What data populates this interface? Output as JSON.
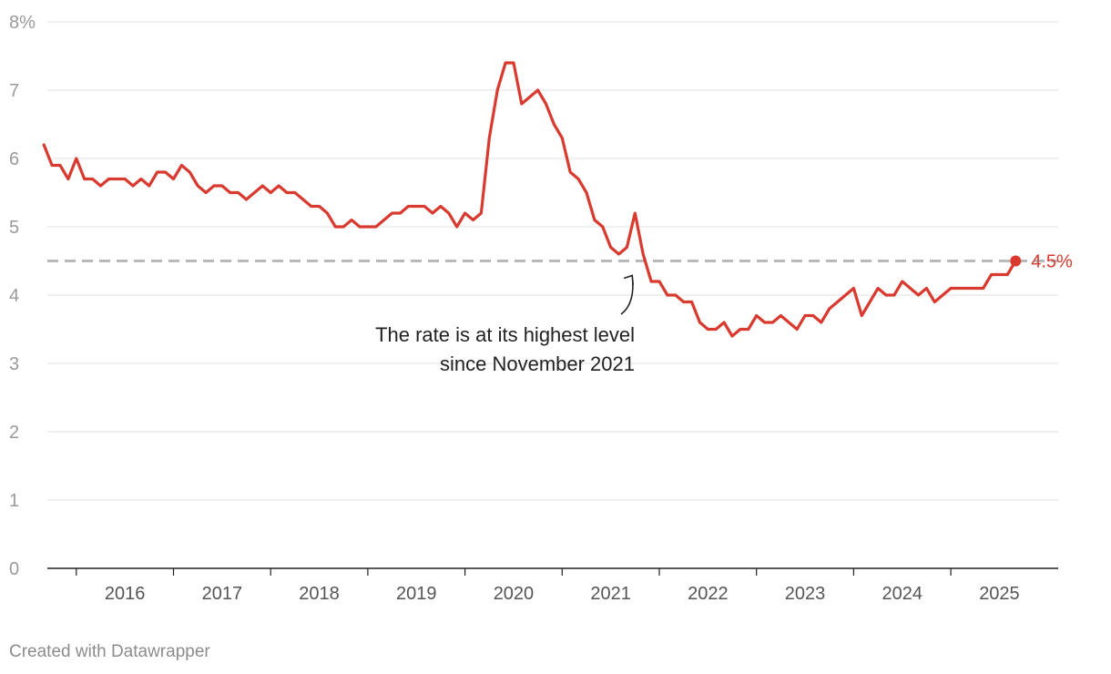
{
  "chart_data": {
    "type": "line",
    "title": "",
    "xlabel": "",
    "ylabel": "",
    "ylim": [
      0,
      8
    ],
    "y_ticks": [
      "0",
      "1",
      "2",
      "3",
      "4",
      "5",
      "6",
      "7",
      "8%"
    ],
    "x_tick_labels": [
      "2016",
      "2017",
      "2018",
      "2019",
      "2020",
      "2021",
      "2022",
      "2023",
      "2024",
      "2025"
    ],
    "x_tick_years": [
      2016,
      2017,
      2018,
      2019,
      2020,
      2021,
      2022,
      2023,
      2024,
      2025
    ],
    "series": [
      {
        "name": "Rate",
        "color": "#d93a2f",
        "start": "2015-09",
        "frequency": "monthly",
        "values": [
          6.2,
          5.9,
          5.9,
          5.7,
          6.0,
          5.7,
          5.7,
          5.6,
          5.7,
          5.7,
          5.7,
          5.6,
          5.7,
          5.6,
          5.8,
          5.8,
          5.7,
          5.9,
          5.8,
          5.6,
          5.5,
          5.6,
          5.6,
          5.5,
          5.5,
          5.4,
          5.5,
          5.6,
          5.5,
          5.6,
          5.5,
          5.5,
          5.4,
          5.3,
          5.3,
          5.2,
          5.0,
          5.0,
          5.1,
          5.0,
          5.0,
          5.0,
          5.1,
          5.2,
          5.2,
          5.3,
          5.3,
          5.3,
          5.2,
          5.3,
          5.2,
          5.0,
          5.2,
          5.1,
          5.2,
          6.3,
          7.0,
          7.4,
          7.4,
          6.8,
          6.9,
          7.0,
          6.8,
          6.5,
          6.3,
          5.8,
          5.7,
          5.5,
          5.1,
          5.0,
          4.7,
          4.6,
          4.7,
          5.2,
          4.6,
          4.2,
          4.2,
          4.0,
          4.0,
          3.9,
          3.9,
          3.6,
          3.5,
          3.5,
          3.6,
          3.4,
          3.5,
          3.5,
          3.7,
          3.6,
          3.6,
          3.7,
          3.6,
          3.5,
          3.7,
          3.7,
          3.6,
          3.8,
          3.9,
          4.0,
          4.1,
          3.7,
          3.9,
          4.1,
          4.0,
          4.0,
          4.2,
          4.1,
          4.0,
          4.1,
          3.9,
          4.0,
          4.1,
          4.1,
          4.1,
          4.1,
          4.1,
          4.3,
          4.3,
          4.3,
          4.5
        ]
      }
    ],
    "reference_line": {
      "value": 4.5,
      "style": "dashed",
      "color": "#b9b9b9"
    },
    "end_label": "4.5%",
    "annotation": {
      "lines": [
        "The rate is at its highest level",
        "since November 2021"
      ],
      "points_to": "2021-11"
    }
  },
  "credit": "Created with Datawrapper"
}
